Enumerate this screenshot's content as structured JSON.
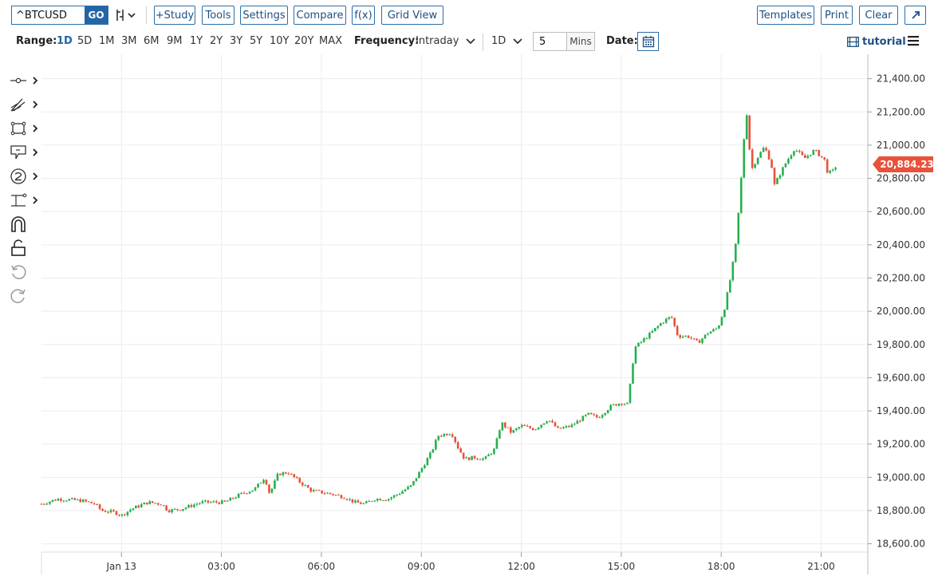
{
  "toolbar": {
    "symbol": "^BTCUSD",
    "go_label": "GO",
    "study_label": "+Study",
    "tools_label": "Tools",
    "settings_label": "Settings",
    "compare_label": "Compare",
    "fx_label": "f(x)",
    "gridview_label": "Grid View",
    "templates_label": "Templates",
    "print_label": "Print",
    "clear_label": "Clear"
  },
  "range_bar": {
    "range_label": "Range:",
    "ranges": [
      "1D",
      "5D",
      "1M",
      "3M",
      "6M",
      "9M",
      "1Y",
      "2Y",
      "3Y",
      "5Y",
      "10Y",
      "20Y",
      "MAX"
    ],
    "active_range": "1D",
    "frequency_label": "Frequency:",
    "frequency_value": "Intraday",
    "period_value": "1D",
    "interval_value": "5",
    "interval_unit": "Mins",
    "date_label": "Date:",
    "tutorial_label": "tutorial"
  },
  "sidebar": {
    "tools": [
      "crosshair-icon",
      "draw-icon",
      "shapes-icon",
      "annotate-icon",
      "measure-icon",
      "fibonacci-icon",
      "magnet-icon",
      "lock-icon",
      "undo-icon",
      "redo-icon"
    ]
  },
  "colors": {
    "up": "#26b04e",
    "down": "#e8513a",
    "grid": "#ececec",
    "price_badge": "#e8513a"
  },
  "chart_data": {
    "type": "candlestick",
    "symbol": "^BTCUSD",
    "interval": "5 Mins",
    "last_price": "20,884.23",
    "ylim": [
      18550,
      21480
    ],
    "y_ticks": [
      "18,600.00",
      "18,800.00",
      "19,000.00",
      "19,200.00",
      "19,400.00",
      "19,600.00",
      "19,800.00",
      "20,000.00",
      "20,200.00",
      "20,400.00",
      "20,600.00",
      "20,800.00",
      "21,000.00",
      "21,200.00",
      "21,400.00"
    ],
    "x_ticks": [
      "Jan 13",
      "03:00",
      "06:00",
      "09:00",
      "12:00",
      "15:00",
      "18:00",
      "21:00"
    ],
    "x_tick_hours": [
      0,
      3,
      6,
      9,
      12,
      15,
      18,
      21
    ],
    "xlim_hours": [
      -2.4,
      22.4
    ],
    "price_path": [
      [
        -2.4,
        18840
      ],
      [
        -1.9,
        18870
      ],
      [
        -1.2,
        18860
      ],
      [
        -0.8,
        18840
      ],
      [
        -0.6,
        18800
      ],
      [
        -0.2,
        18790
      ],
      [
        0.0,
        18770
      ],
      [
        0.3,
        18810
      ],
      [
        0.8,
        18850
      ],
      [
        1.2,
        18840
      ],
      [
        1.4,
        18800
      ],
      [
        1.8,
        18810
      ],
      [
        2.4,
        18850
      ],
      [
        3.1,
        18850
      ],
      [
        3.6,
        18900
      ],
      [
        4.0,
        18930
      ],
      [
        4.3,
        19000
      ],
      [
        4.45,
        18900
      ],
      [
        4.7,
        19020
      ],
      [
        5.0,
        19030
      ],
      [
        5.3,
        18980
      ],
      [
        5.7,
        18920
      ],
      [
        6.3,
        18900
      ],
      [
        6.7,
        18880
      ],
      [
        7.0,
        18850
      ],
      [
        7.3,
        18840
      ],
      [
        7.6,
        18870
      ],
      [
        8.0,
        18870
      ],
      [
        8.3,
        18900
      ],
      [
        8.7,
        18950
      ],
      [
        9.0,
        19050
      ],
      [
        9.3,
        19150
      ],
      [
        9.5,
        19250
      ],
      [
        9.9,
        19270
      ],
      [
        10.1,
        19180
      ],
      [
        10.3,
        19110
      ],
      [
        10.6,
        19120
      ],
      [
        10.9,
        19110
      ],
      [
        11.2,
        19170
      ],
      [
        11.4,
        19330
      ],
      [
        11.7,
        19270
      ],
      [
        12.0,
        19310
      ],
      [
        12.4,
        19290
      ],
      [
        12.8,
        19350
      ],
      [
        13.1,
        19290
      ],
      [
        13.5,
        19310
      ],
      [
        14.0,
        19380
      ],
      [
        14.3,
        19360
      ],
      [
        14.7,
        19430
      ],
      [
        15.0,
        19450
      ],
      [
        15.2,
        19440
      ],
      [
        15.4,
        19780
      ],
      [
        15.9,
        19870
      ],
      [
        16.2,
        19930
      ],
      [
        16.5,
        19970
      ],
      [
        16.7,
        19850
      ],
      [
        17.0,
        19850
      ],
      [
        17.3,
        19810
      ],
      [
        17.6,
        19870
      ],
      [
        17.9,
        19900
      ],
      [
        18.1,
        20020
      ],
      [
        18.3,
        20220
      ],
      [
        18.45,
        20420
      ],
      [
        18.6,
        20800
      ],
      [
        18.75,
        21230
      ],
      [
        18.9,
        20850
      ],
      [
        19.1,
        20930
      ],
      [
        19.3,
        20990
      ],
      [
        19.5,
        20890
      ],
      [
        19.6,
        20760
      ],
      [
        19.9,
        20880
      ],
      [
        20.2,
        20980
      ],
      [
        20.5,
        20920
      ],
      [
        20.8,
        20970
      ],
      [
        21.1,
        20910
      ],
      [
        21.2,
        20830
      ],
      [
        21.4,
        20850
      ],
      [
        21.45,
        20880
      ]
    ],
    "grid": true
  }
}
